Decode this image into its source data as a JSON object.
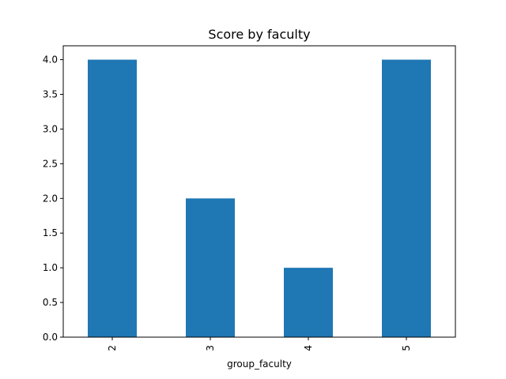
{
  "chart_data": {
    "type": "bar",
    "title": "Score by faculty",
    "xlabel": "group_faculty",
    "ylabel": "",
    "categories": [
      "2",
      "3",
      "4",
      "5"
    ],
    "values": [
      4,
      2,
      1,
      4
    ],
    "ylim": [
      0,
      4.2
    ],
    "yticks": [
      "0.0",
      "0.5",
      "1.0",
      "1.5",
      "2.0",
      "2.5",
      "3.0",
      "3.5",
      "4.0"
    ],
    "x_tick_rotation": "vertical",
    "grid": false,
    "legend": "none",
    "bar_color": "#1f77b4"
  }
}
